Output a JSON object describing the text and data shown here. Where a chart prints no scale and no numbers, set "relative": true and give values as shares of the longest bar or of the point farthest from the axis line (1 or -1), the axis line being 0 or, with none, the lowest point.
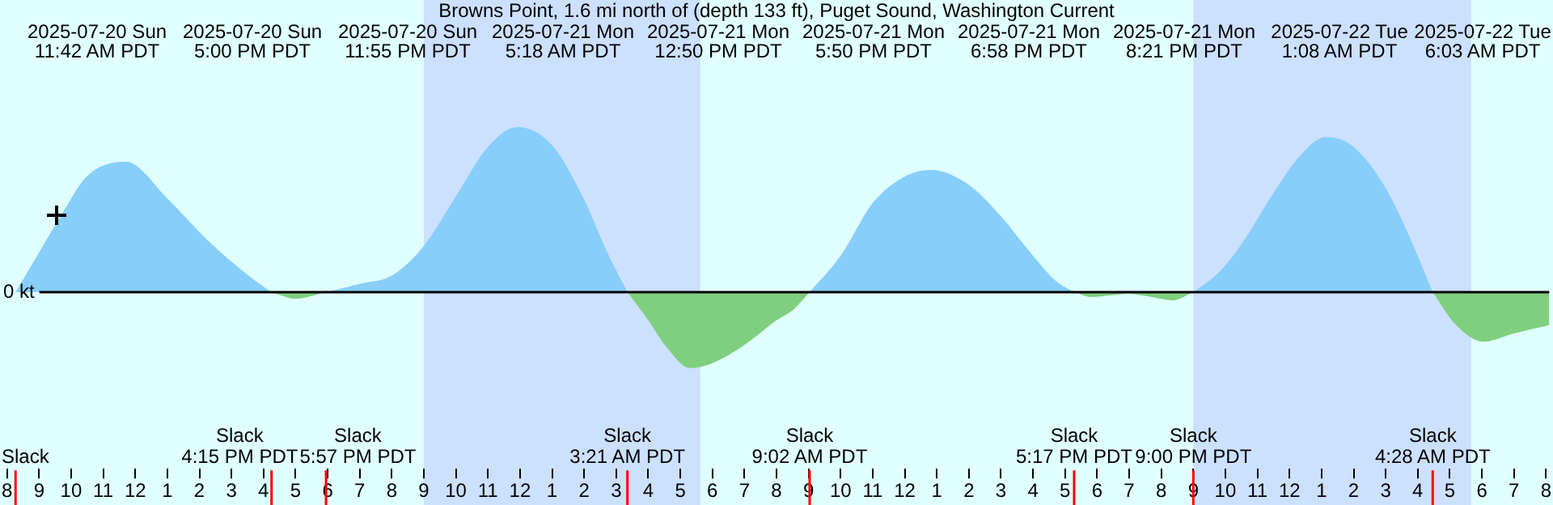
{
  "chart_data": {
    "type": "area",
    "title": "Browns Point, 1.6 mi north of (depth 133 ft), Puget Sound, Washington Current",
    "relative": true,
    "legend": false,
    "tick_labels": "x",
    "marker": "none",
    "xlim": [
      "2025-07-20T08:00",
      "2025-07-22T08:06"
    ],
    "xticks": [
      {
        "value": "2025-07-20T08:00",
        "label": "8"
      },
      {
        "value": "2025-07-20T09:00",
        "label": "9"
      },
      {
        "value": "2025-07-20T10:00",
        "label": "10"
      },
      {
        "value": "2025-07-20T11:00",
        "label": "11"
      },
      {
        "value": "2025-07-20T12:00",
        "label": "12"
      },
      {
        "value": "2025-07-20T13:00",
        "label": "1"
      },
      {
        "value": "2025-07-20T14:00",
        "label": "2"
      },
      {
        "value": "2025-07-20T15:00",
        "label": "3"
      },
      {
        "value": "2025-07-20T16:00",
        "label": "4"
      },
      {
        "value": "2025-07-20T17:00",
        "label": "5"
      },
      {
        "value": "2025-07-20T18:00",
        "label": "6"
      },
      {
        "value": "2025-07-20T19:00",
        "label": "7"
      },
      {
        "value": "2025-07-20T20:00",
        "label": "8"
      },
      {
        "value": "2025-07-20T21:00",
        "label": "9"
      },
      {
        "value": "2025-07-20T22:00",
        "label": "10"
      },
      {
        "value": "2025-07-20T23:00",
        "label": "11"
      },
      {
        "value": "2025-07-21T00:00",
        "label": "12"
      },
      {
        "value": "2025-07-21T01:00",
        "label": "1"
      },
      {
        "value": "2025-07-21T02:00",
        "label": "2"
      },
      {
        "value": "2025-07-21T03:00",
        "label": "3"
      },
      {
        "value": "2025-07-21T04:00",
        "label": "4"
      },
      {
        "value": "2025-07-21T05:00",
        "label": "5"
      },
      {
        "value": "2025-07-21T06:00",
        "label": "6"
      },
      {
        "value": "2025-07-21T07:00",
        "label": "7"
      },
      {
        "value": "2025-07-21T08:00",
        "label": "8"
      },
      {
        "value": "2025-07-21T09:00",
        "label": "9"
      },
      {
        "value": "2025-07-21T10:00",
        "label": "10"
      },
      {
        "value": "2025-07-21T11:00",
        "label": "11"
      },
      {
        "value": "2025-07-21T12:00",
        "label": "12"
      },
      {
        "value": "2025-07-21T13:00",
        "label": "1"
      },
      {
        "value": "2025-07-21T14:00",
        "label": "2"
      },
      {
        "value": "2025-07-21T15:00",
        "label": "3"
      },
      {
        "value": "2025-07-21T16:00",
        "label": "4"
      },
      {
        "value": "2025-07-21T17:00",
        "label": "5"
      },
      {
        "value": "2025-07-21T18:00",
        "label": "6"
      },
      {
        "value": "2025-07-21T19:00",
        "label": "7"
      },
      {
        "value": "2025-07-21T20:00",
        "label": "8"
      },
      {
        "value": "2025-07-21T21:00",
        "label": "9"
      },
      {
        "value": "2025-07-21T22:00",
        "label": "10"
      },
      {
        "value": "2025-07-21T23:00",
        "label": "11"
      },
      {
        "value": "2025-07-22T00:00",
        "label": "12"
      },
      {
        "value": "2025-07-22T01:00",
        "label": "1"
      },
      {
        "value": "2025-07-22T02:00",
        "label": "2"
      },
      {
        "value": "2025-07-22T03:00",
        "label": "3"
      },
      {
        "value": "2025-07-22T04:00",
        "label": "4"
      },
      {
        "value": "2025-07-22T05:00",
        "label": "5"
      },
      {
        "value": "2025-07-22T06:00",
        "label": "6"
      },
      {
        "value": "2025-07-22T07:00",
        "label": "7"
      },
      {
        "value": "2025-07-22T08:00",
        "label": "8"
      }
    ],
    "series": [
      {
        "color": "#87cefa",
        "x": [
          "2025-07-20T08:16",
          "2025-07-20T09:00",
          "2025-07-20T09:44",
          "2025-07-20T10:29",
          "2025-07-20T11:42",
          "2025-07-20T13:02",
          "2025-07-20T14:17",
          "2025-07-20T15:32",
          "2025-07-20T16:15",
          "2025-07-20T16:48",
          "2025-07-20T17:57",
          "2025-07-20T19:00",
          "2025-07-20T20:00",
          "2025-07-20T21:00",
          "2025-07-20T22:00",
          "2025-07-20T23:00",
          "2025-07-20T23:55",
          "2025-07-21T01:00",
          "2025-07-21T02:00",
          "2025-07-21T02:42",
          "2025-07-21T03:21",
          "2025-07-21T06:00",
          "2025-07-21T09:02",
          "2025-07-21T10:00",
          "2025-07-21T11:00",
          "2025-07-21T12:00",
          "2025-07-21T12:50",
          "2025-07-21T14:00",
          "2025-07-21T15:00",
          "2025-07-21T16:00",
          "2025-07-21T16:42",
          "2025-07-21T17:17",
          "2025-07-21T19:00",
          "2025-07-21T21:00",
          "2025-07-21T21:48",
          "2025-07-21T22:30",
          "2025-07-21T23:30",
          "2025-07-22T00:18",
          "2025-07-22T01:08",
          "2025-07-22T02:00",
          "2025-07-22T03:00",
          "2025-07-22T03:48",
          "2025-07-22T04:28"
        ],
        "values": [
          0,
          0.24,
          0.48,
          0.7,
          0.79,
          0.56,
          0.31,
          0.1,
          0,
          null,
          0,
          0.05,
          0.1,
          0.28,
          0.58,
          0.88,
          1,
          0.89,
          0.56,
          0.25,
          0,
          null,
          0,
          0.22,
          0.54,
          0.7,
          0.74,
          0.65,
          0.46,
          0.22,
          0.07,
          0,
          null,
          0,
          0.12,
          0.29,
          0.6,
          0.82,
          0.94,
          0.88,
          0.63,
          0.31,
          0
        ]
      },
      {
        "color": "#7fcf7f",
        "x": [
          "2025-07-20T16:15",
          "2025-07-20T17:00",
          "2025-07-20T17:57",
          "2025-07-20T22:00",
          "2025-07-21T03:21",
          "2025-07-21T04:00",
          "2025-07-21T04:36",
          "2025-07-21T05:18",
          "2025-07-21T06:00",
          "2025-07-21T07:00",
          "2025-07-21T08:00",
          "2025-07-21T08:30",
          "2025-07-21T09:02",
          "2025-07-21T13:00",
          "2025-07-21T17:17",
          "2025-07-21T17:50",
          "2025-07-21T18:24",
          "2025-07-21T18:58",
          "2025-07-21T19:42",
          "2025-07-21T20:21",
          "2025-07-21T21:00",
          "2025-07-22T01:00",
          "2025-07-22T04:28",
          "2025-07-22T05:12",
          "2025-07-22T06:03",
          "2025-07-22T07:00",
          "2025-07-22T08:06"
        ],
        "values": [
          0,
          -0.04,
          0,
          null,
          0,
          -0.17,
          -0.34,
          -0.46,
          -0.43,
          -0.32,
          -0.17,
          -0.11,
          0,
          null,
          0,
          -0.03,
          -0.02,
          -0.01,
          -0.03,
          -0.05,
          0,
          null,
          0,
          -0.2,
          -0.3,
          -0.25,
          -0.2
        ]
      }
    ],
    "bands": [
      {
        "axis": "x",
        "from": "2025-07-20T21:00",
        "to": "2025-07-21T05:37",
        "color": "#cce0ff"
      },
      {
        "axis": "x",
        "from": "2025-07-21T21:00",
        "to": "2025-07-22T05:40",
        "color": "#cce0ff"
      }
    ],
    "ref_lines": [
      {
        "axis": "y",
        "value": 0,
        "label": "0 kt",
        "color": "#000000"
      },
      {
        "axis": "x",
        "value": "2025-07-20T08:16",
        "label": "Slack",
        "color": "#ff0000"
      },
      {
        "axis": "x",
        "value": "2025-07-20T16:15",
        "label": "Slack\n4:15 PM PDT",
        "color": "#ff0000"
      },
      {
        "axis": "x",
        "value": "2025-07-20T17:57",
        "label": "Slack\n5:57 PM PDT",
        "color": "#ff0000"
      },
      {
        "axis": "x",
        "value": "2025-07-21T03:21",
        "label": "Slack\n3:21 AM PDT",
        "color": "#ff0000"
      },
      {
        "axis": "x",
        "value": "2025-07-21T09:02",
        "label": "Slack\n9:02 AM PDT",
        "color": "#ff0000"
      },
      {
        "axis": "x",
        "value": "2025-07-21T17:17",
        "label": "Slack\n5:17 PM PDT",
        "color": "#ff0000"
      },
      {
        "axis": "x",
        "value": "2025-07-21T21:00",
        "label": "Slack\n9:00 PM PDT",
        "color": "#ff0000"
      },
      {
        "axis": "x",
        "value": "2025-07-22T04:28",
        "label": "Slack\n4:28 AM PDT",
        "color": "#ff0000"
      }
    ],
    "annotations": [
      "2025-07-20 Sun\n11:42 AM PDT",
      "2025-07-20 Sun\n5:00 PM PDT",
      "2025-07-20 Sun\n11:55 PM PDT",
      "2025-07-21 Mon\n5:18 AM PDT",
      "2025-07-21 Mon\n12:50 PM PDT",
      "2025-07-21 Mon\n5:50 PM PDT",
      "2025-07-21 Mon\n6:58 PM PDT",
      "2025-07-21 Mon\n8:21 PM PDT",
      "2025-07-22 Tue\n1:08 AM PDT",
      "2025-07-22 Tue\n6:03 AM PDT"
    ]
  }
}
